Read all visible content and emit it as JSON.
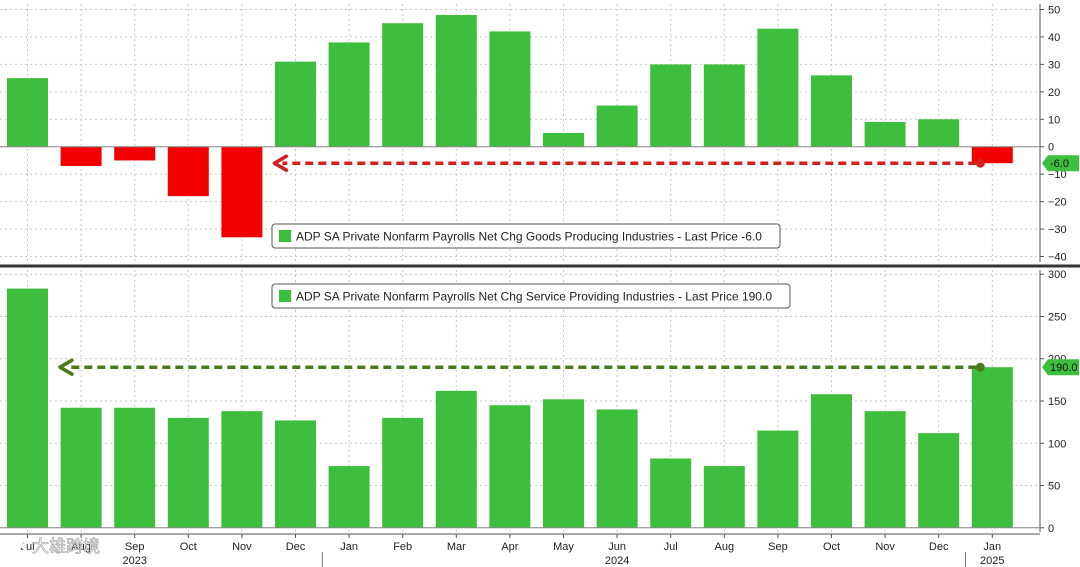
{
  "chart_data": [
    {
      "type": "bar",
      "categories": [
        "Jul 2023",
        "Aug 2023",
        "Sep 2023",
        "Oct 2023",
        "Nov 2023",
        "Dec 2023",
        "Jan 2024",
        "Feb 2024",
        "Mar 2024",
        "Apr 2024",
        "May 2024",
        "Jun 2024",
        "Jul 2024",
        "Aug 2024",
        "Sep 2024",
        "Oct 2024",
        "Nov 2024",
        "Dec 2024",
        "Jan 2025"
      ],
      "values": [
        25,
        -7,
        -5,
        -18,
        -33,
        31,
        38,
        45,
        48,
        42,
        5,
        15,
        30,
        30,
        43,
        26,
        9,
        10,
        -6
      ],
      "legend": "ADP SA Private Nonfarm Payrolls Net Chg Goods Producing Industries - Last Price -6.0",
      "last_value_label": "-6.0",
      "ylim": [
        -42,
        52
      ],
      "yticks": [
        50,
        40,
        30,
        20,
        10,
        0,
        -10,
        -20,
        -30,
        -40
      ],
      "positive_color": "#3dbf3d",
      "negative_color": "#f20000",
      "arrow_color": "#d42020",
      "grid": true
    },
    {
      "type": "bar",
      "categories": [
        "Jul 2023",
        "Aug 2023",
        "Sep 2023",
        "Oct 2023",
        "Nov 2023",
        "Dec 2023",
        "Jan 2024",
        "Feb 2024",
        "Mar 2024",
        "Apr 2024",
        "May 2024",
        "Jun 2024",
        "Jul 2024",
        "Aug 2024",
        "Sep 2024",
        "Oct 2024",
        "Nov 2024",
        "Dec 2024",
        "Jan 2025"
      ],
      "values": [
        283,
        142,
        142,
        130,
        138,
        127,
        73,
        130,
        162,
        145,
        152,
        140,
        82,
        73,
        115,
        158,
        138,
        112,
        190
      ],
      "legend": "ADP SA Private Nonfarm Payrolls Net Chg Service Providing Industries - Last Price 190.0",
      "last_value_label": "190.0",
      "ylim": [
        -5,
        305
      ],
      "yticks": [
        300,
        250,
        200,
        150,
        100,
        50,
        0
      ],
      "bar_color": "#3dbf3d",
      "arrow_color": "#4a7a1c",
      "grid": true
    }
  ],
  "x_axis": {
    "month_labels": [
      "Jul",
      "Aug",
      "Sep",
      "Oct",
      "Nov",
      "Dec",
      "Jan",
      "Feb",
      "Mar",
      "Apr",
      "May",
      "Jun",
      "Jul",
      "Aug",
      "Sep",
      "Oct",
      "Nov",
      "Dec",
      "Jan"
    ],
    "year_labels": [
      {
        "label": "2023",
        "at_index": 2
      },
      {
        "label": "2024",
        "at_index": 11
      },
      {
        "label": "2025",
        "at_index": 18
      }
    ]
  },
  "watermark": "大雄跨境"
}
